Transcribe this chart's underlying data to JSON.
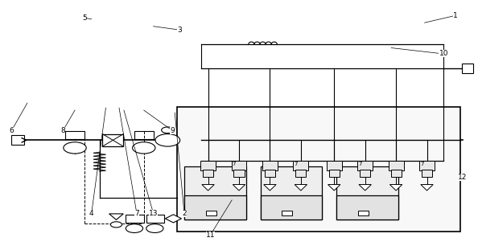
{
  "bg_color": "#ffffff",
  "line_color": "#000000",
  "labels": {
    "1": [
      0.955,
      0.06,
      0.89,
      0.09
    ],
    "2": [
      0.385,
      0.885,
      0.365,
      0.465
    ],
    "3": [
      0.375,
      0.12,
      0.31,
      0.1
    ],
    "4": [
      0.19,
      0.885,
      0.22,
      0.445
    ],
    "5": [
      0.175,
      0.07,
      0.19,
      0.075
    ],
    "6": [
      0.022,
      0.54,
      0.055,
      0.425
    ],
    "7": [
      0.285,
      0.885,
      0.245,
      0.445
    ],
    "8": [
      0.13,
      0.54,
      0.155,
      0.45
    ],
    "9": [
      0.36,
      0.54,
      0.3,
      0.45
    ],
    "10": [
      0.93,
      0.22,
      0.82,
      0.19
    ],
    "11": [
      0.44,
      0.975,
      0.48,
      0.83
    ],
    "12": [
      0.97,
      0.735,
      0.965,
      0.67
    ],
    "13": [
      0.32,
      0.885,
      0.255,
      0.455
    ]
  }
}
